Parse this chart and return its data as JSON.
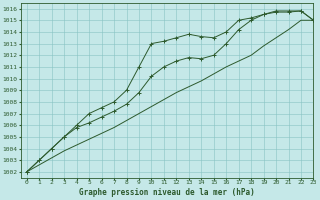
{
  "title": "Graphe pression niveau de la mer (hPa)",
  "bg_color": "#c5e8e8",
  "grid_color": "#88c4c4",
  "line_color": "#2d5a2d",
  "xlim": [
    -0.5,
    23
  ],
  "ylim": [
    1001.5,
    1016.5
  ],
  "xticks": [
    0,
    1,
    2,
    3,
    4,
    5,
    6,
    7,
    8,
    9,
    10,
    11,
    12,
    13,
    14,
    15,
    16,
    17,
    18,
    19,
    20,
    21,
    22,
    23
  ],
  "yticks": [
    1002,
    1003,
    1004,
    1005,
    1006,
    1007,
    1008,
    1009,
    1010,
    1011,
    1012,
    1013,
    1014,
    1015,
    1016
  ],
  "line1_x": [
    0,
    1,
    2,
    3,
    4,
    5,
    6,
    7,
    8,
    9,
    10,
    11,
    12,
    13,
    14,
    15,
    16,
    17,
    18,
    19,
    20,
    21,
    22,
    23
  ],
  "line1_y": [
    1002.0,
    1003.0,
    1004.0,
    1005.0,
    1006.0,
    1007.0,
    1007.5,
    1008.0,
    1009.0,
    1011.0,
    1013.0,
    1013.2,
    1013.5,
    1013.8,
    1013.6,
    1013.5,
    1014.0,
    1015.0,
    1015.2,
    1015.5,
    1015.7,
    1015.7,
    1015.8,
    1015.0
  ],
  "line2_x": [
    0,
    1,
    2,
    3,
    4,
    5,
    6,
    7,
    8,
    9,
    10,
    11,
    12,
    13,
    14,
    15,
    16,
    17,
    18,
    19,
    20,
    21,
    22,
    23
  ],
  "line2_y": [
    1002.0,
    1003.0,
    1004.0,
    1005.0,
    1005.8,
    1006.2,
    1006.7,
    1007.2,
    1007.8,
    1008.8,
    1010.2,
    1011.0,
    1011.5,
    1011.8,
    1011.7,
    1012.0,
    1013.0,
    1014.2,
    1015.0,
    1015.5,
    1015.8,
    1015.8,
    1015.8,
    1015.0
  ],
  "line3_x": [
    0,
    1,
    2,
    3,
    4,
    5,
    6,
    7,
    8,
    9,
    10,
    11,
    12,
    13,
    14,
    15,
    16,
    17,
    18,
    19,
    20,
    21,
    22,
    23
  ],
  "line3_y": [
    1002.0,
    1002.6,
    1003.2,
    1003.8,
    1004.3,
    1004.8,
    1005.3,
    1005.8,
    1006.4,
    1007.0,
    1007.6,
    1008.2,
    1008.8,
    1009.3,
    1009.8,
    1010.4,
    1011.0,
    1011.5,
    1012.0,
    1012.8,
    1013.5,
    1014.2,
    1015.0,
    1015.0
  ],
  "marker": "+",
  "tick_fontsize": 4.5,
  "xlabel_fontsize": 5.5,
  "linewidth": 0.7,
  "markersize": 2.5
}
